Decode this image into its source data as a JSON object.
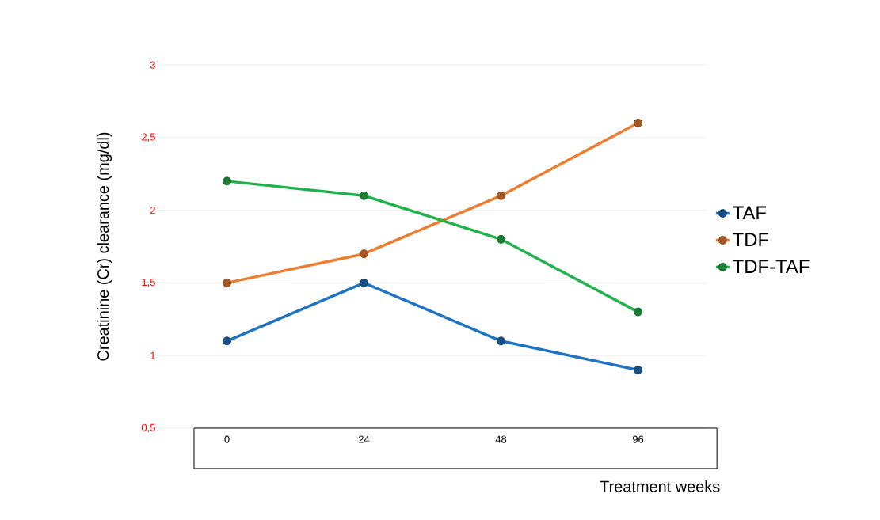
{
  "chart_data": {
    "type": "line",
    "xlabel": "Treatment weeks",
    "ylabel": "Creatinine (Cr) clearance (mg/dl)",
    "categories": [
      "0",
      "24",
      "48",
      "96"
    ],
    "series": [
      {
        "name": "TAF",
        "color": "#1f73c0",
        "values": [
          1.1,
          1.5,
          1.1,
          0.9
        ]
      },
      {
        "name": "TDF",
        "color": "#ed7d31",
        "values": [
          1.5,
          1.7,
          2.1,
          2.6
        ]
      },
      {
        "name": "TDF-TAF",
        "color": "#22b14c",
        "values": [
          2.2,
          2.1,
          1.8,
          1.3
        ]
      }
    ],
    "ylim": [
      0.5,
      3
    ],
    "yticks": [
      {
        "value": 0.5,
        "label": "0,5"
      },
      1,
      {
        "value": 1.5,
        "label": "1,5"
      },
      2,
      {
        "value": 2.5,
        "label": "2,5"
      },
      3
    ],
    "grid": "y",
    "legend": "right",
    "marker": "circle",
    "line_style": "solid"
  }
}
